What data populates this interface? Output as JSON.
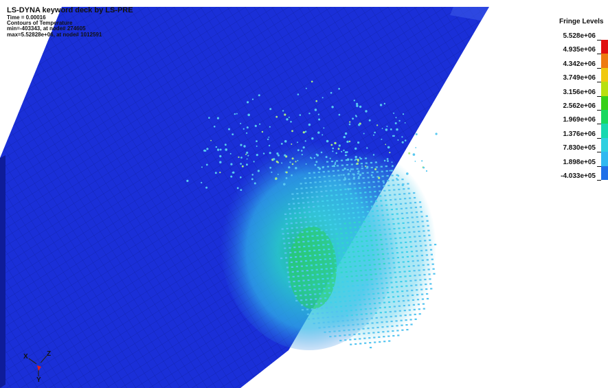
{
  "header": {
    "title": "LS-DYNA keyword deck by LS-PRE",
    "time_line": "Time =    0.00016",
    "contour_line": "Contours of Temperature",
    "min_line": "min=-403343, at node# 274605",
    "max_line": "max=5.52828e+06, at node# 1012591"
  },
  "legend": {
    "title": "Fringe Levels",
    "levels": [
      "5.528e+06",
      "4.935e+06",
      "4.342e+06",
      "3.749e+06",
      "3.156e+06",
      "2.562e+06",
      "1.969e+06",
      "1.376e+06",
      "7.830e+05",
      "1.898e+05",
      "-4.033e+05"
    ],
    "colors": [
      "#e01010",
      "#ee7a10",
      "#f0c810",
      "#b8e010",
      "#38d018",
      "#18d860",
      "#18d8b0",
      "#30d0e0",
      "#30b8f0",
      "#2070e8",
      "#1028d8"
    ]
  },
  "axes": {
    "x_label": "X",
    "y_label": "Y",
    "z_label": "Z"
  }
}
